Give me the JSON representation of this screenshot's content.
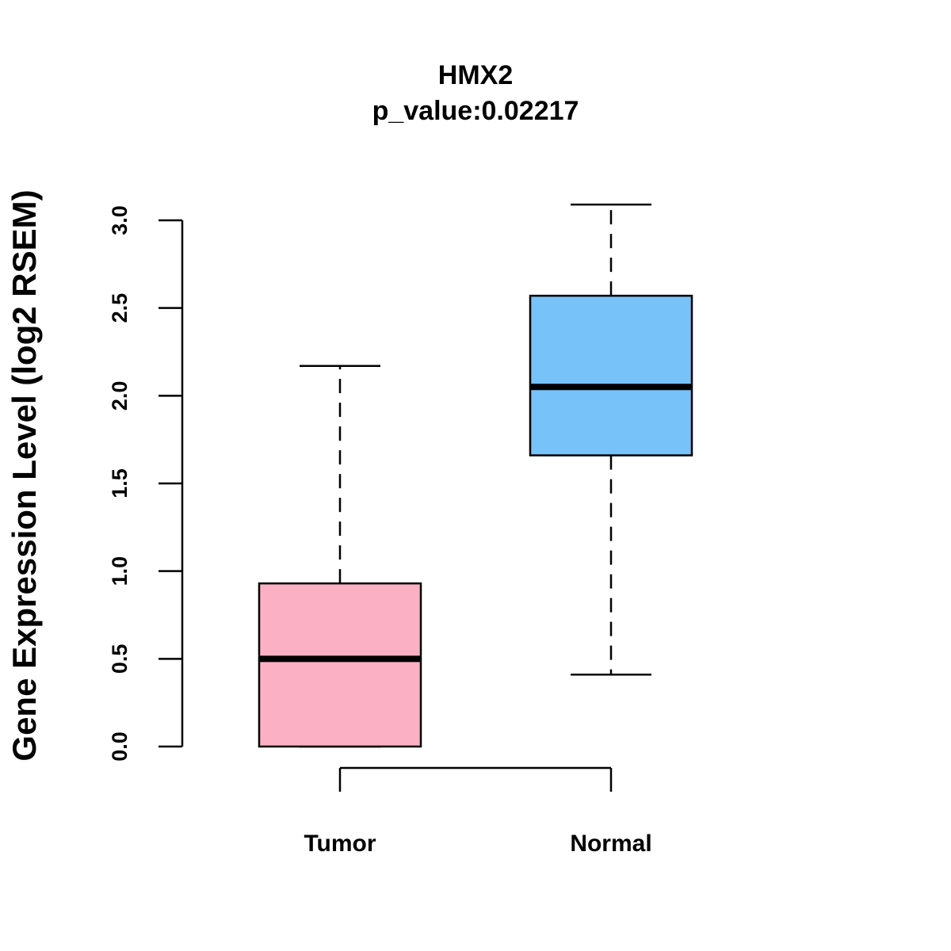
{
  "chart_data": {
    "type": "boxplot",
    "title": "HMX2",
    "subtitle": "p_value:0.02217",
    "xlabel": "",
    "ylabel": "Gene Expression Level (log2 RSEM)",
    "ylim": [
      0,
      3.0
    ],
    "yticks": [
      0.0,
      0.5,
      1.0,
      1.5,
      2.0,
      2.5,
      3.0
    ],
    "ytick_labels": [
      "0.0",
      "0.5",
      "1.0",
      "1.5",
      "2.0",
      "2.5",
      "3.0"
    ],
    "grid": false,
    "categories": [
      "Tumor",
      "Normal"
    ],
    "boxes": [
      {
        "name": "Tumor",
        "min": 0.0,
        "q1": 0.0,
        "median": 0.5,
        "q3": 0.93,
        "max": 2.17,
        "color": "#FBB1C3"
      },
      {
        "name": "Normal",
        "min": 0.41,
        "q1": 1.66,
        "median": 2.05,
        "q3": 2.57,
        "max": 3.09,
        "color": "#77C2F8"
      }
    ],
    "significance_bracket": {
      "from": "Tumor",
      "to": "Normal"
    }
  }
}
